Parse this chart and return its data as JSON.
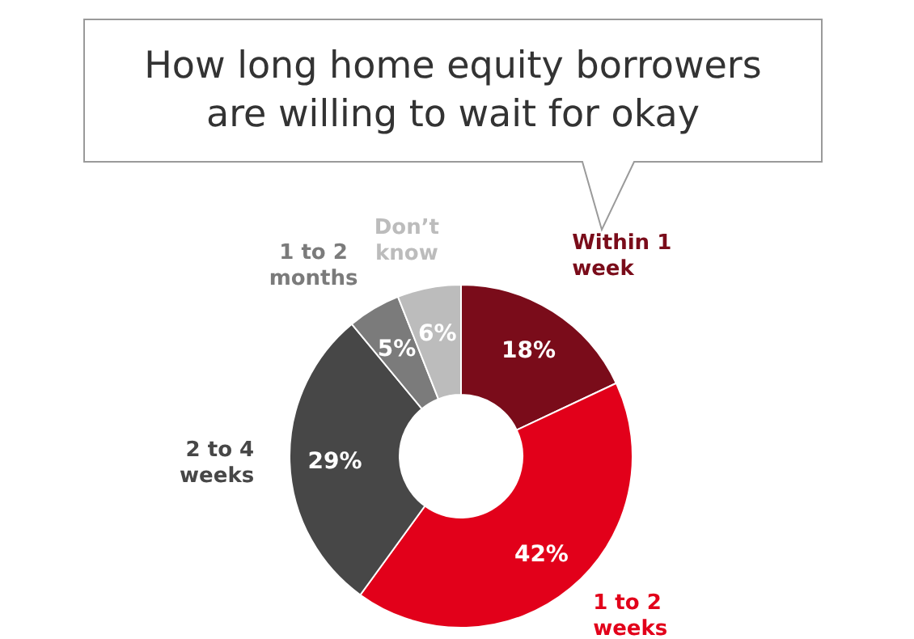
{
  "chart_data": {
    "type": "donut",
    "title": "How long home equity borrowers are willing to wait for okay",
    "categories": [
      "Within 1 week",
      "1 to 2 weeks",
      "2 to 4 weeks",
      "1 to 2 months",
      "Don’t know"
    ],
    "values": [
      18,
      42,
      29,
      5,
      6
    ],
    "colors": [
      "#7a0c1a",
      "#e2001a",
      "#474747",
      "#7b7b7b",
      "#bcbcbc"
    ],
    "value_labels": [
      "18%",
      "42%",
      "29%",
      "5%",
      "6%"
    ]
  }
}
